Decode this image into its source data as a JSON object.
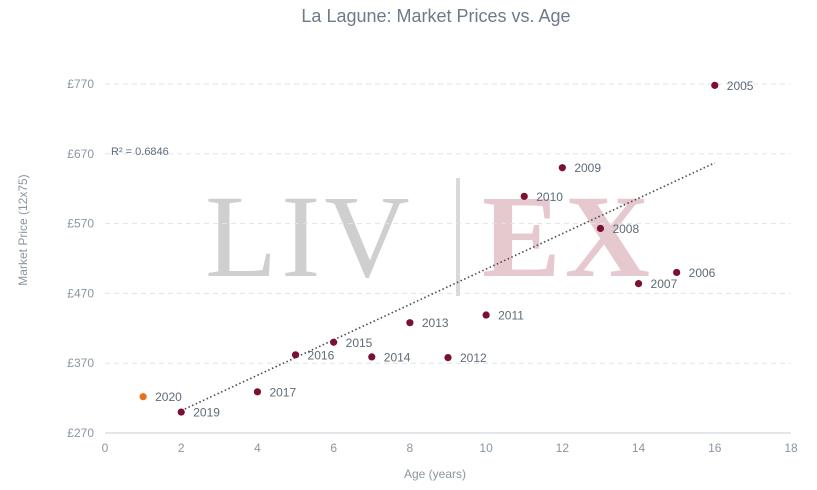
{
  "chart_data": {
    "type": "scatter",
    "title": "La Lagune: Market Prices vs. Age",
    "xlabel": "Age (years)",
    "ylabel": "Market Price (12x75)",
    "xlim": [
      0,
      18
    ],
    "ylim": [
      270,
      790
    ],
    "x_ticks": [
      0,
      2,
      4,
      6,
      8,
      10,
      12,
      14,
      16,
      18
    ],
    "y_ticks": [
      270,
      370,
      470,
      570,
      670,
      770
    ],
    "y_tick_labels": [
      "£270",
      "£370",
      "£470",
      "£570",
      "£670",
      "£770"
    ],
    "grid": "horizontal dashed",
    "points": [
      {
        "label": "2005",
        "x": 16,
        "y": 768,
        "color": "#7b1030"
      },
      {
        "label": "2006",
        "x": 15,
        "y": 500,
        "color": "#7b1030"
      },
      {
        "label": "2007",
        "x": 14,
        "y": 484,
        "color": "#7b1030"
      },
      {
        "label": "2008",
        "x": 13,
        "y": 563,
        "color": "#7b1030"
      },
      {
        "label": "2009",
        "x": 12,
        "y": 650,
        "color": "#7b1030"
      },
      {
        "label": "2010",
        "x": 11,
        "y": 609,
        "color": "#7b1030"
      },
      {
        "label": "2011",
        "x": 10,
        "y": 439,
        "color": "#7b1030"
      },
      {
        "label": "2012",
        "x": 9,
        "y": 378,
        "color": "#7b1030"
      },
      {
        "label": "2013",
        "x": 8,
        "y": 428,
        "color": "#7b1030"
      },
      {
        "label": "2014",
        "x": 7,
        "y": 379,
        "color": "#7b1030"
      },
      {
        "label": "2015",
        "x": 6,
        "y": 400,
        "color": "#7b1030"
      },
      {
        "label": "2016",
        "x": 5,
        "y": 382,
        "color": "#7b1030"
      },
      {
        "label": "2017",
        "x": 4,
        "y": 329,
        "color": "#7b1030"
      },
      {
        "label": "2019",
        "x": 2,
        "y": 300,
        "color": "#7b1030"
      },
      {
        "label": "2020",
        "x": 1,
        "y": 322,
        "color": "#e8711f"
      }
    ],
    "trendline": {
      "style": "dotted",
      "color": "#4a4a4a",
      "from": [
        2,
        302
      ],
      "to": [
        16,
        657
      ],
      "r_squared_text": "R² = 0.6846"
    },
    "watermark": {
      "left": "LIV",
      "right": "EX"
    }
  }
}
